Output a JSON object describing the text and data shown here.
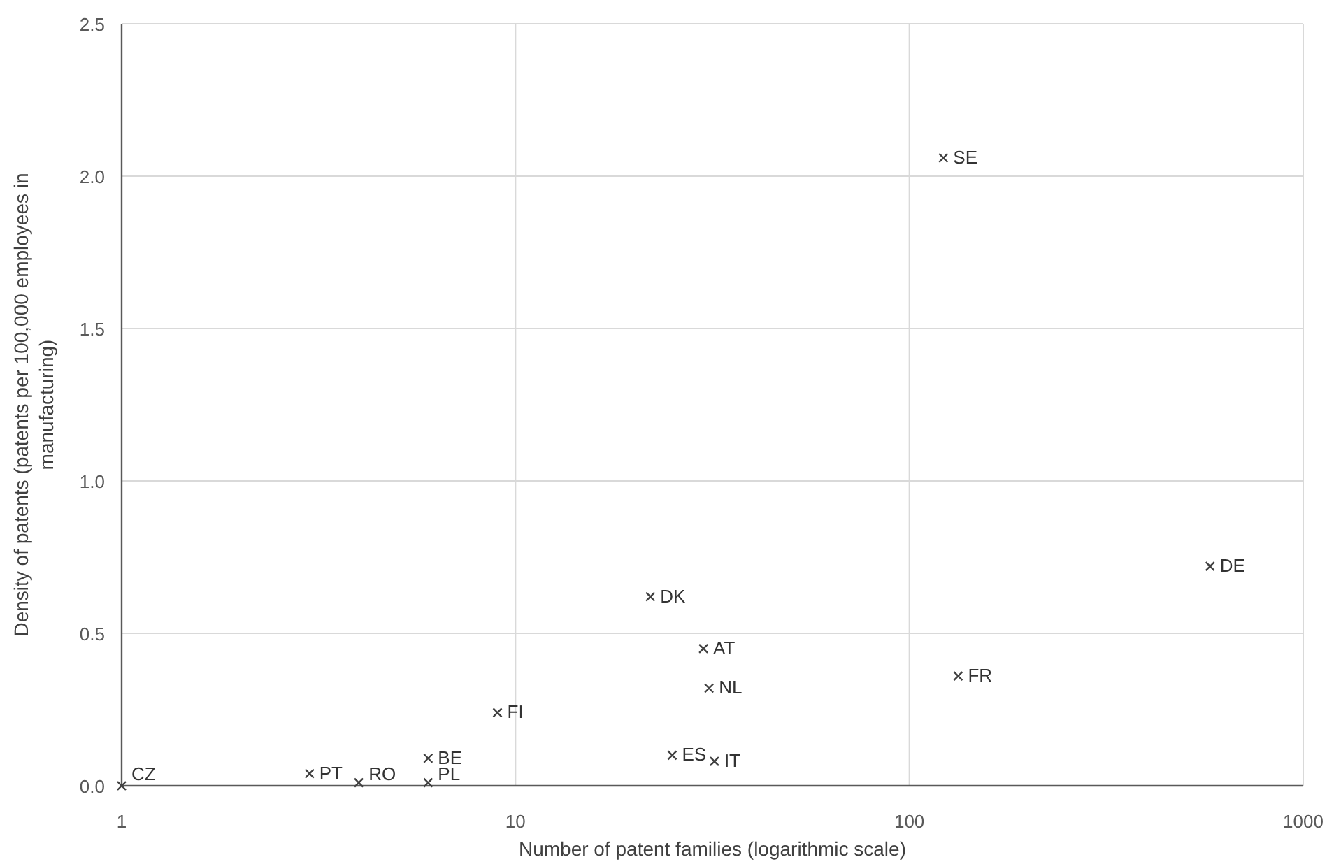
{
  "chart_data": {
    "type": "scatter",
    "xlabel": "Number of patent families (logarithmic scale)",
    "ylabel": "Density of patents (patents per 100,000 employees in manufacturing)",
    "log": "x",
    "grid": true,
    "marker": "cross",
    "xlim": [
      1,
      1000
    ],
    "xticks": [
      1,
      10,
      100,
      1000
    ],
    "ylim": [
      0,
      2.5
    ],
    "yticks": [
      {
        "value": 0,
        "label": "0.0"
      },
      {
        "value": 0.5,
        "label": "0.5"
      },
      {
        "value": 1,
        "label": "1.0"
      },
      {
        "value": 1.5,
        "label": "1.5"
      },
      {
        "value": 2,
        "label": "2.0"
      },
      {
        "value": 2.5,
        "label": "2.5"
      }
    ],
    "series": [
      {
        "name": "SE",
        "color": "#404040",
        "x": [
          122
        ],
        "values": [
          2.06
        ]
      },
      {
        "name": "DE",
        "color": "#404040",
        "x": [
          580
        ],
        "values": [
          0.72
        ]
      },
      {
        "name": "FR",
        "color": "#404040",
        "x": [
          133
        ],
        "values": [
          0.36
        ]
      },
      {
        "name": "DK",
        "color": "#404040",
        "x": [
          22
        ],
        "values": [
          0.62
        ]
      },
      {
        "name": "AT",
        "color": "#404040",
        "x": [
          30
        ],
        "values": [
          0.45
        ]
      },
      {
        "name": "NL",
        "color": "#404040",
        "x": [
          31
        ],
        "values": [
          0.32
        ]
      },
      {
        "name": "FI",
        "color": "#404040",
        "x": [
          9
        ],
        "values": [
          0.24
        ]
      },
      {
        "name": "ES",
        "color": "#404040",
        "x": [
          25
        ],
        "values": [
          0.1
        ]
      },
      {
        "name": "IT",
        "color": "#404040",
        "x": [
          32
        ],
        "values": [
          0.08
        ]
      },
      {
        "name": "BE",
        "color": "#404040",
        "x": [
          6
        ],
        "values": [
          0.09
        ]
      },
      {
        "name": "PL",
        "color": "#404040",
        "x": [
          6
        ],
        "values": [
          0.01
        ]
      },
      {
        "name": "RO",
        "color": "#404040",
        "x": [
          4
        ],
        "values": [
          0.01
        ]
      },
      {
        "name": "PT",
        "color": "#404040",
        "x": [
          3
        ],
        "values": [
          0.04
        ]
      },
      {
        "name": "CZ",
        "color": "#404040",
        "x": [
          1
        ],
        "values": [
          0
        ]
      }
    ]
  }
}
